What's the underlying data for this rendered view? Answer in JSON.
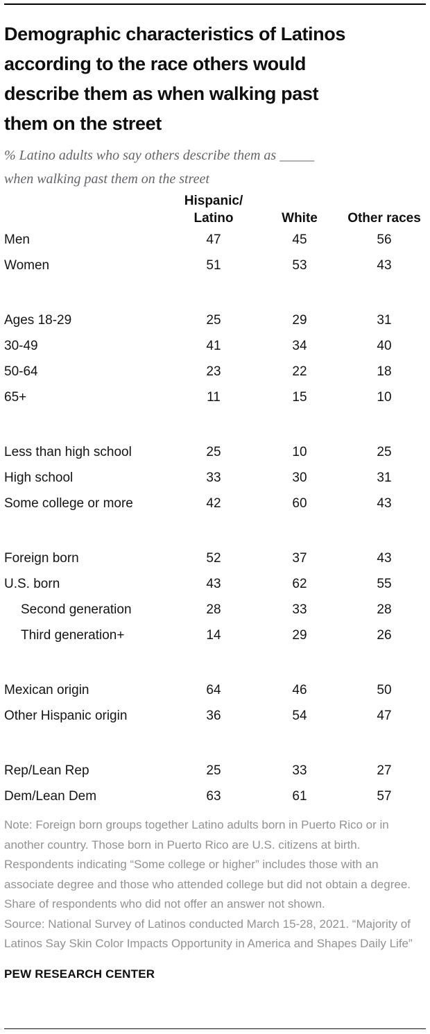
{
  "chart_data": {
    "type": "table",
    "title": "Demographic characteristics of Latinos\naccording to the race others would\ndescribe them as when walking past\nthem on the street",
    "subtitle": "% Latino adults who say others describe them as _____\nwhen walking past them on the street",
    "columns": [
      "Hispanic/\nLatino",
      "White",
      "Other races"
    ],
    "groups": [
      {
        "rows": [
          {
            "label": "Men",
            "indent": false,
            "values": [
              47,
              45,
              56
            ]
          },
          {
            "label": "Women",
            "indent": false,
            "values": [
              51,
              53,
              43
            ]
          }
        ]
      },
      {
        "rows": [
          {
            "label": "Ages 18-29",
            "indent": false,
            "values": [
              25,
              29,
              31
            ]
          },
          {
            "label": "30-49",
            "indent": false,
            "values": [
              41,
              34,
              40
            ]
          },
          {
            "label": "50-64",
            "indent": false,
            "values": [
              23,
              22,
              18
            ]
          },
          {
            "label": "65+",
            "indent": false,
            "values": [
              11,
              15,
              10
            ]
          }
        ]
      },
      {
        "rows": [
          {
            "label": "Less than high school",
            "indent": false,
            "values": [
              25,
              10,
              25
            ]
          },
          {
            "label": "High school",
            "indent": false,
            "values": [
              33,
              30,
              31
            ]
          },
          {
            "label": "Some college or more",
            "indent": false,
            "values": [
              42,
              60,
              43
            ]
          }
        ]
      },
      {
        "rows": [
          {
            "label": "Foreign born",
            "indent": false,
            "values": [
              52,
              37,
              43
            ]
          },
          {
            "label": "U.S. born",
            "indent": false,
            "values": [
              43,
              62,
              55
            ]
          },
          {
            "label": "Second generation",
            "indent": true,
            "values": [
              28,
              33,
              28
            ]
          },
          {
            "label": "Third generation+",
            "indent": true,
            "values": [
              14,
              29,
              26
            ]
          }
        ]
      },
      {
        "rows": [
          {
            "label": "Mexican origin",
            "indent": false,
            "values": [
              64,
              46,
              50
            ]
          },
          {
            "label": "Other Hispanic origin",
            "indent": false,
            "values": [
              36,
              54,
              47
            ]
          }
        ]
      },
      {
        "rows": [
          {
            "label": "Rep/Lean Rep",
            "indent": false,
            "values": [
              25,
              33,
              27
            ]
          },
          {
            "label": "Dem/Lean Dem",
            "indent": false,
            "values": [
              63,
              61,
              57
            ]
          }
        ]
      }
    ],
    "note": "Note: Foreign born groups together Latino adults born in Puerto Rico or in another country. Those born in Puerto Rico are U.S. citizens at birth. Respondents indicating “Some college or higher” includes those with an associate degree and those who attended college but did not obtain a degree. Share of respondents who did not offer an answer not shown.",
    "source": "Source: National Survey of Latinos conducted March 15-28, 2021. “Majority of Latinos Say Skin Color Impacts Opportunity in America and Shapes Daily Life”",
    "footer": "PEW RESEARCH CENTER",
    "colors": {
      "title_text": "#0f0f0f",
      "subtitle_text": "#63636a",
      "body_text": "#141414",
      "note_text": "#929292",
      "rule": "#000000",
      "background": "#ffffff"
    },
    "layout": {
      "legend_position": "none",
      "grid": false
    }
  }
}
